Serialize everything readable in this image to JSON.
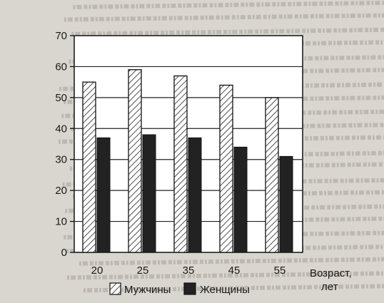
{
  "chart_data": {
    "type": "bar",
    "categories": [
      "20",
      "25",
      "35",
      "45",
      "55"
    ],
    "series": [
      {
        "name": "Мужчины",
        "values": [
          55,
          59,
          57,
          54,
          50
        ],
        "pattern": "hatched",
        "color": "#ffffff"
      },
      {
        "name": "Женщины",
        "values": [
          37,
          38,
          37,
          34,
          31
        ],
        "pattern": "solid",
        "color": "#222222"
      }
    ],
    "title": "",
    "xlabel": "Возраст, лет",
    "xlabel_lines": [
      "Возраст,",
      "лет"
    ],
    "ylabel": "",
    "ylim": [
      0,
      70
    ],
    "yticks": [
      0,
      10,
      20,
      30,
      40,
      50,
      60,
      70
    ],
    "grid": true,
    "legend_position": "bottom"
  }
}
